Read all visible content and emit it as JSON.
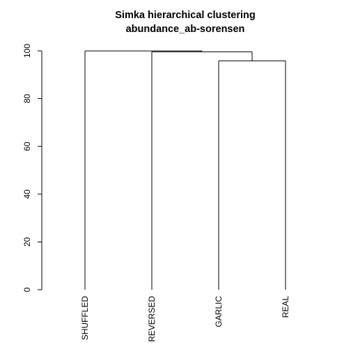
{
  "chart_data": {
    "type": "dendrogram",
    "title": "Simka hierarchical clustering",
    "subtitle": "abundance_ab-sorensen",
    "xlabel": "",
    "ylabel": "",
    "ylim": [
      0,
      100
    ],
    "yticks": [
      0,
      20,
      40,
      60,
      80,
      100
    ],
    "leaves": [
      "SHUFFLED",
      "REVERSED",
      "GARLIC",
      "REAL"
    ],
    "merges": [
      {
        "left": "GARLIC",
        "right": "REAL",
        "height": 95.8
      },
      {
        "left": "REVERSED",
        "right": "GARLIC+REAL",
        "height": 99.6
      },
      {
        "left": "SHUFFLED",
        "right": "REVERSED+GARLIC+REAL",
        "height": 99.95
      }
    ],
    "colors": {
      "line": "#000000",
      "text": "#000000",
      "background": "#ffffff"
    }
  }
}
